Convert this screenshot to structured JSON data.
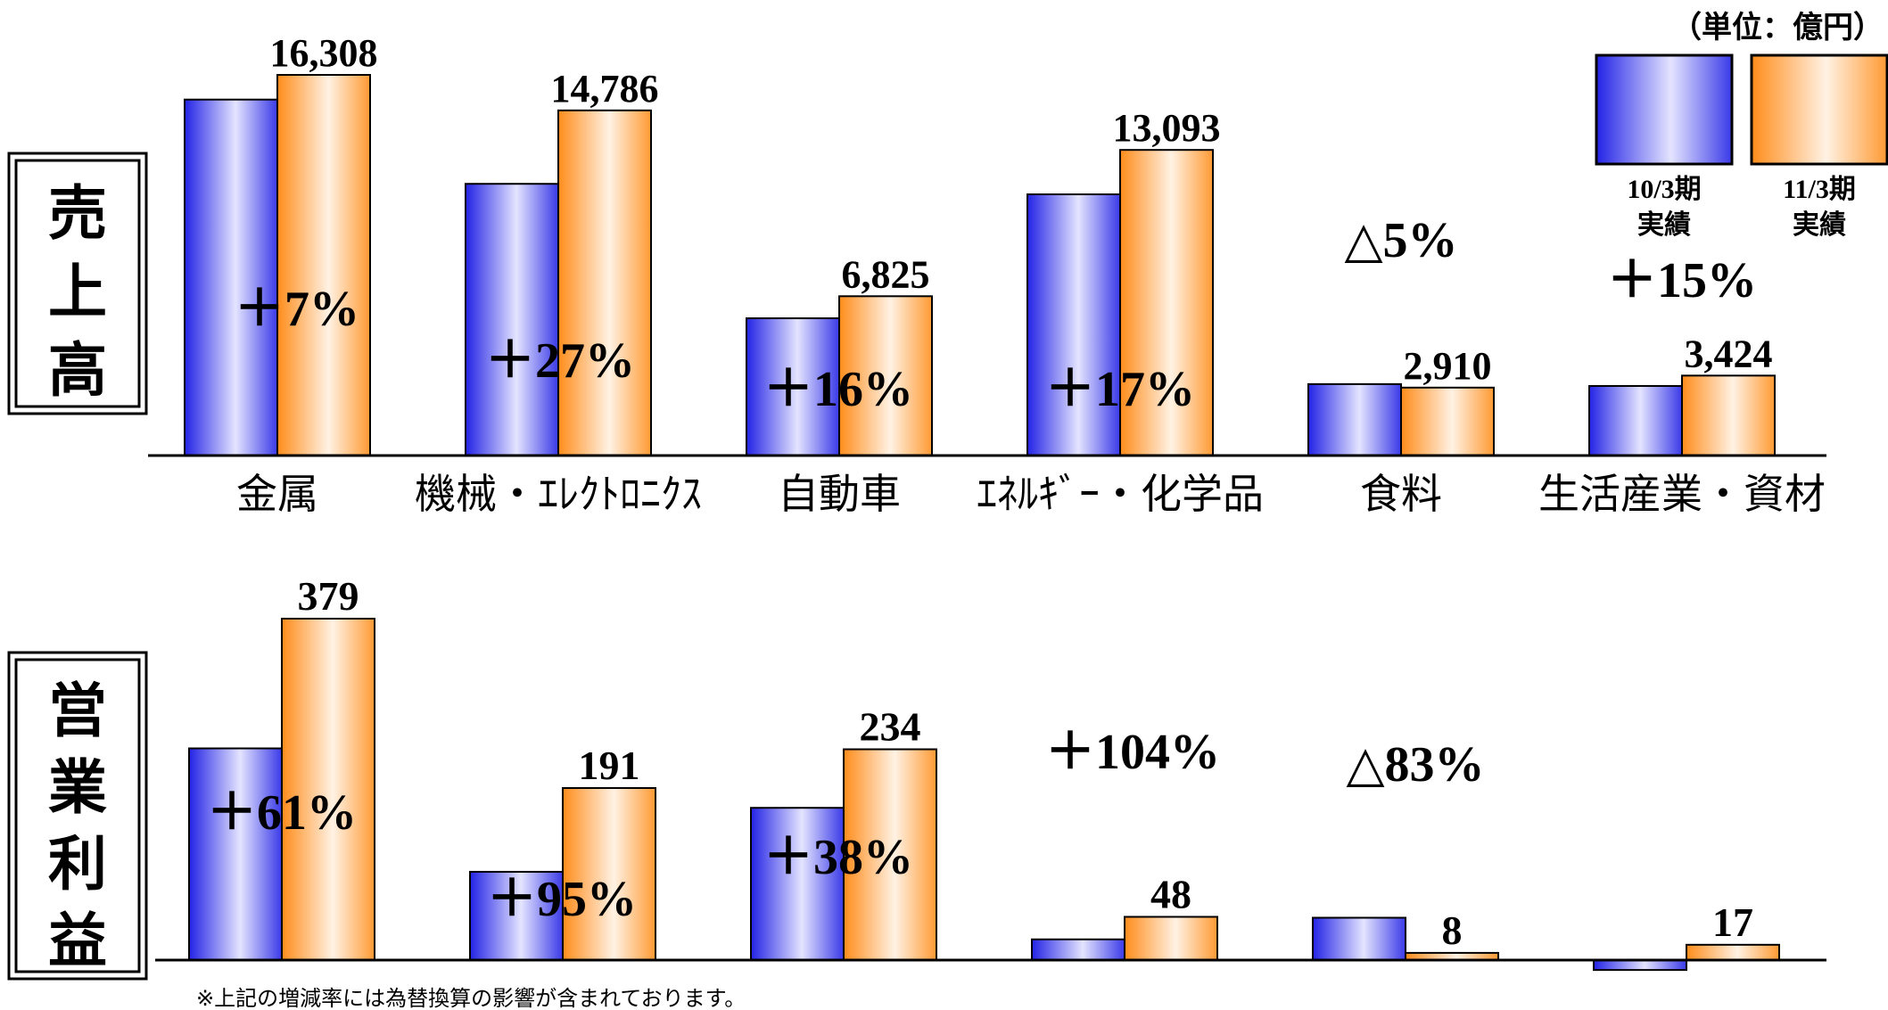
{
  "unit_label": "（単位：億円）",
  "footnote": "※上記の増減率には為替換算の影響が含まれております。",
  "colors": {
    "fy10_gradient": [
      "#2323e6",
      "#e4e4ff",
      "#3a3ae8"
    ],
    "fy11_gradient": [
      "#ff8c1a",
      "#fff2e4",
      "#ff9a33"
    ],
    "fy10_border": "#000000",
    "fy11_border": "#000000"
  },
  "legend": [
    {
      "label_line1": "10/3期",
      "label_line2": "実績",
      "series": "fy10"
    },
    {
      "label_line1": "11/3期",
      "label_line2": "実績",
      "series": "fy11"
    }
  ],
  "chart_data": [
    {
      "type": "bar",
      "title": "売上高",
      "categories": [
        "金属",
        "機械・ｴﾚｸﾄﾛﾆｸｽ",
        "自動車",
        "ｴﾈﾙｷﾞｰ・化学品",
        "食料",
        "生活産業・資材"
      ],
      "series": [
        {
          "name": "10/3期 実績",
          "values": [
            15250,
            11640,
            5880,
            11190,
            3060,
            2980
          ]
        },
        {
          "name": "11/3期 実績",
          "values": [
            16308,
            14786,
            6825,
            13093,
            2910,
            3424
          ]
        }
      ],
      "value_labels": [
        "16,308",
        "14,786",
        "6,825",
        "13,093",
        "2,910",
        "3,424"
      ],
      "change_labels": [
        "＋7%",
        "＋27%",
        "＋16%",
        "＋17%",
        "△5%",
        "＋15%"
      ],
      "ylim": [
        0,
        17500
      ],
      "grid": false,
      "legend_position": "top-right"
    },
    {
      "type": "bar",
      "title": "営業利益",
      "categories": [
        "金属",
        "機械・ｴﾚｸﾄﾛﾆｸｽ",
        "自動車",
        "ｴﾈﾙｷﾞｰ・化学品",
        "食料",
        "生活産業・資材"
      ],
      "series": [
        {
          "name": "10/3期 実績",
          "values": [
            235,
            98,
            169,
            23,
            47,
            -11
          ]
        },
        {
          "name": "11/3期 実績",
          "values": [
            379,
            191,
            234,
            48,
            8,
            17
          ]
        }
      ],
      "value_labels": [
        "379",
        "191",
        "234",
        "48",
        "8",
        "17"
      ],
      "change_labels": [
        "＋61%",
        "＋95%",
        "＋38%",
        "＋104%",
        "△83%",
        ""
      ],
      "ylim": [
        -11,
        400
      ],
      "grid": false
    }
  ]
}
